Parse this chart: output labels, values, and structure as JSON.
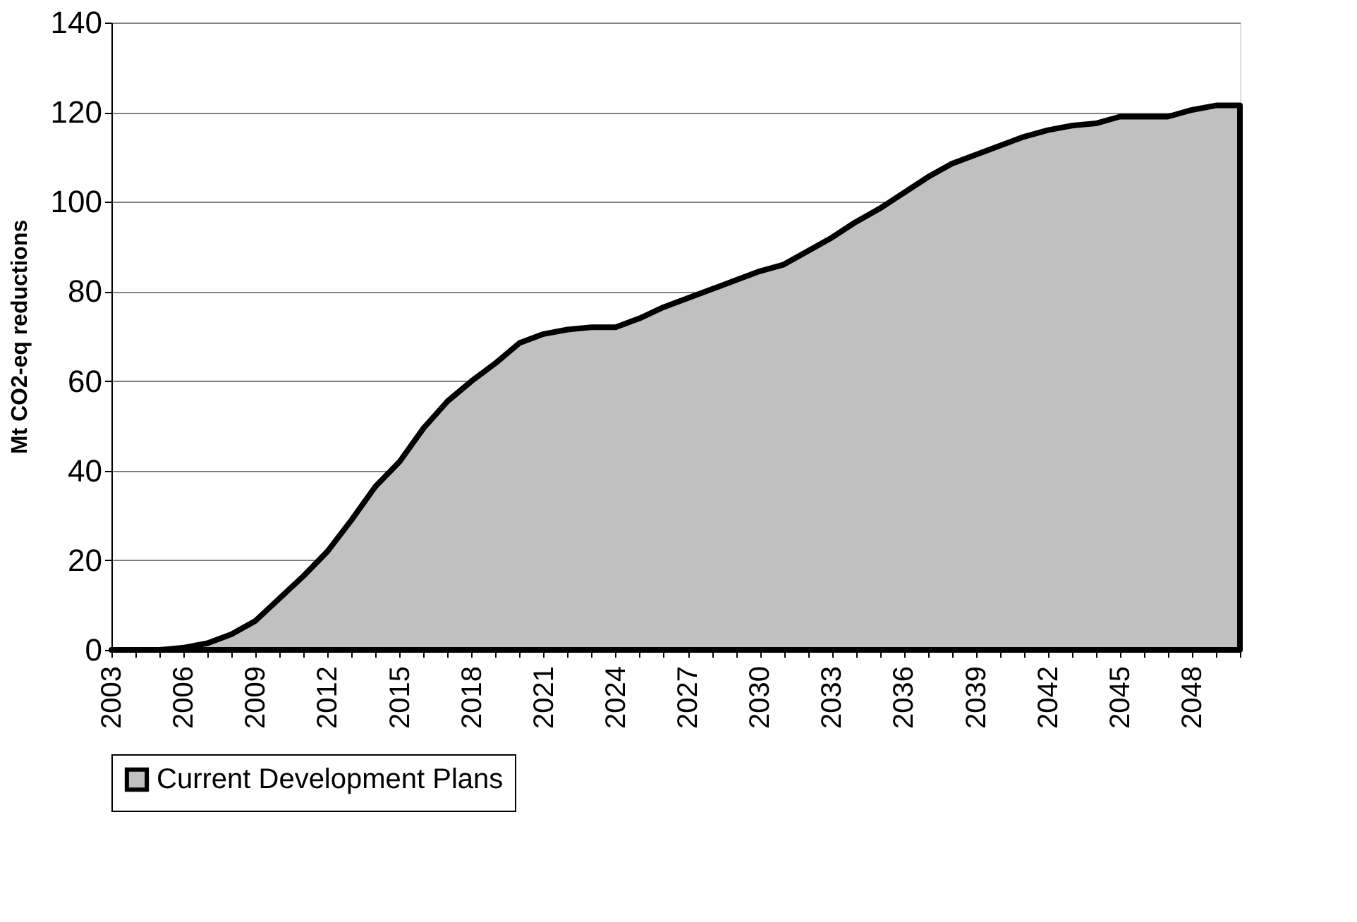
{
  "chart_data": {
    "type": "area",
    "ylabel": "Mt CO2-eq reductions",
    "categories": [
      "2003",
      null,
      null,
      "2006",
      null,
      null,
      "2009",
      null,
      null,
      "2012",
      null,
      null,
      "2015",
      null,
      null,
      "2018",
      null,
      null,
      "2021",
      null,
      null,
      "2024",
      null,
      null,
      "2027",
      null,
      null,
      "2030",
      null,
      null,
      "2033",
      null,
      null,
      "2036",
      null,
      null,
      "2039",
      null,
      null,
      "2042",
      null,
      null,
      "2045",
      null,
      null,
      "2048",
      null,
      null
    ],
    "series": [
      {
        "name": "Current Development Plans",
        "color": "#c0c0c0",
        "values": [
          0,
          0,
          0,
          0.5,
          1.5,
          3.5,
          6.5,
          11.5,
          16.5,
          22,
          29,
          36.5,
          42,
          49.5,
          55.5,
          60,
          64,
          68.5,
          70.5,
          71.5,
          72,
          72,
          74,
          76.5,
          78.5,
          80.5,
          82.5,
          84.5,
          86,
          89,
          92,
          95.5,
          98.5,
          102,
          105.5,
          108.5,
          110.5,
          112.5,
          114.5,
          116,
          117,
          117.5,
          119,
          119,
          119,
          120.5,
          121.5,
          121.5
        ]
      }
    ],
    "ylim": [
      0,
      140
    ],
    "yticks": [
      0,
      20,
      40,
      60,
      80,
      100,
      120,
      140
    ],
    "grid": "y",
    "legend": "bottom"
  }
}
